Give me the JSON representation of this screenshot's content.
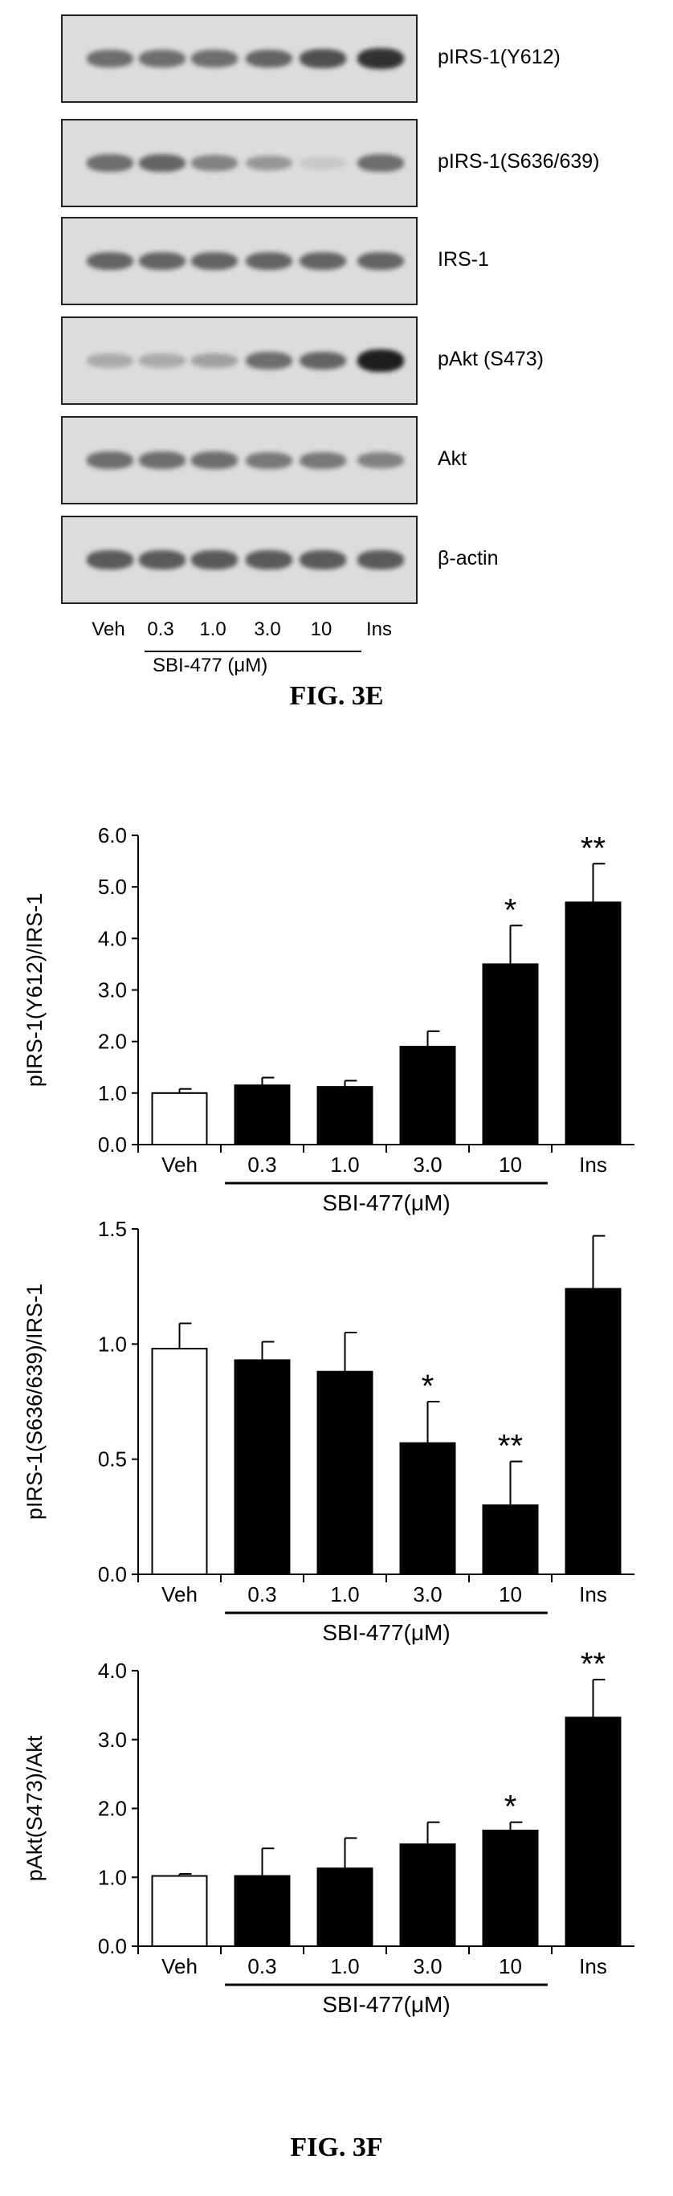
{
  "blot": {
    "rows": [
      {
        "label": "pIRS-1(Y612)",
        "intensity": [
          0.55,
          0.55,
          0.55,
          0.6,
          0.7,
          0.85
        ]
      },
      {
        "label": "pIRS-1(S636/639)",
        "intensity": [
          0.55,
          0.6,
          0.45,
          0.35,
          0.1,
          0.55
        ]
      },
      {
        "label": "IRS-1",
        "intensity": [
          0.6,
          0.6,
          0.6,
          0.6,
          0.6,
          0.6
        ]
      },
      {
        "label": "pAkt (S473)",
        "intensity": [
          0.25,
          0.25,
          0.3,
          0.55,
          0.6,
          0.95
        ]
      },
      {
        "label": "Akt",
        "intensity": [
          0.55,
          0.55,
          0.55,
          0.5,
          0.5,
          0.45
        ]
      },
      {
        "label": "β-actin",
        "intensity": [
          0.65,
          0.65,
          0.65,
          0.65,
          0.65,
          0.65
        ]
      }
    ],
    "lanes": [
      "Veh",
      "0.3",
      "1.0",
      "3.0",
      "10",
      "Ins"
    ],
    "treatment_label": "SBI-477 (μM)"
  },
  "caption_e": "FIG. 3E",
  "caption_f": "FIG. 3F",
  "chart_data": [
    {
      "type": "bar",
      "categories": [
        "Veh",
        "0.3",
        "1.0",
        "3.0",
        "10",
        "Ins"
      ],
      "values": [
        1.0,
        1.15,
        1.12,
        1.9,
        3.5,
        4.7
      ],
      "errors": [
        0.08,
        0.15,
        0.12,
        0.3,
        0.75,
        0.75
      ],
      "significance": [
        "",
        "",
        "",
        "",
        "*",
        "**"
      ],
      "bar_fill": [
        "#ffffff",
        "#000000",
        "#000000",
        "#000000",
        "#000000",
        "#000000"
      ],
      "ylabel": "pIRS-1(Y612)/IRS-1",
      "ylim": [
        0,
        6.0
      ],
      "yticks": [
        "0.0",
        "1.0",
        "2.0",
        "3.0",
        "4.0",
        "5.0",
        "6.0"
      ],
      "group_label": "SBI-477(μM)"
    },
    {
      "type": "bar",
      "categories": [
        "Veh",
        "0.3",
        "1.0",
        "3.0",
        "10",
        "Ins"
      ],
      "values": [
        0.98,
        0.93,
        0.88,
        0.57,
        0.3,
        1.24
      ],
      "errors": [
        0.11,
        0.08,
        0.17,
        0.18,
        0.19,
        0.23
      ],
      "significance": [
        "",
        "",
        "",
        "*",
        "**",
        ""
      ],
      "bar_fill": [
        "#ffffff",
        "#000000",
        "#000000",
        "#000000",
        "#000000",
        "#000000"
      ],
      "ylabel": "pIRS-1(S636/639)/IRS-1",
      "ylim": [
        0,
        1.5
      ],
      "yticks": [
        "0.0",
        "0.5",
        "1.0",
        "1.5"
      ],
      "group_label": "SBI-477(μM)"
    },
    {
      "type": "bar",
      "categories": [
        "Veh",
        "0.3",
        "1.0",
        "3.0",
        "10",
        "Ins"
      ],
      "values": [
        1.02,
        1.02,
        1.13,
        1.48,
        1.68,
        3.32
      ],
      "errors": [
        0.03,
        0.4,
        0.44,
        0.32,
        0.12,
        0.55
      ],
      "significance": [
        "",
        "",
        "",
        "",
        "*",
        "**"
      ],
      "bar_fill": [
        "#ffffff",
        "#000000",
        "#000000",
        "#000000",
        "#000000",
        "#000000"
      ],
      "ylabel": "pAkt(S473)/Akt",
      "ylim": [
        0,
        4.0
      ],
      "yticks": [
        "0.0",
        "1.0",
        "2.0",
        "3.0",
        "4.0"
      ],
      "group_label": "SBI-477(μM)"
    }
  ]
}
